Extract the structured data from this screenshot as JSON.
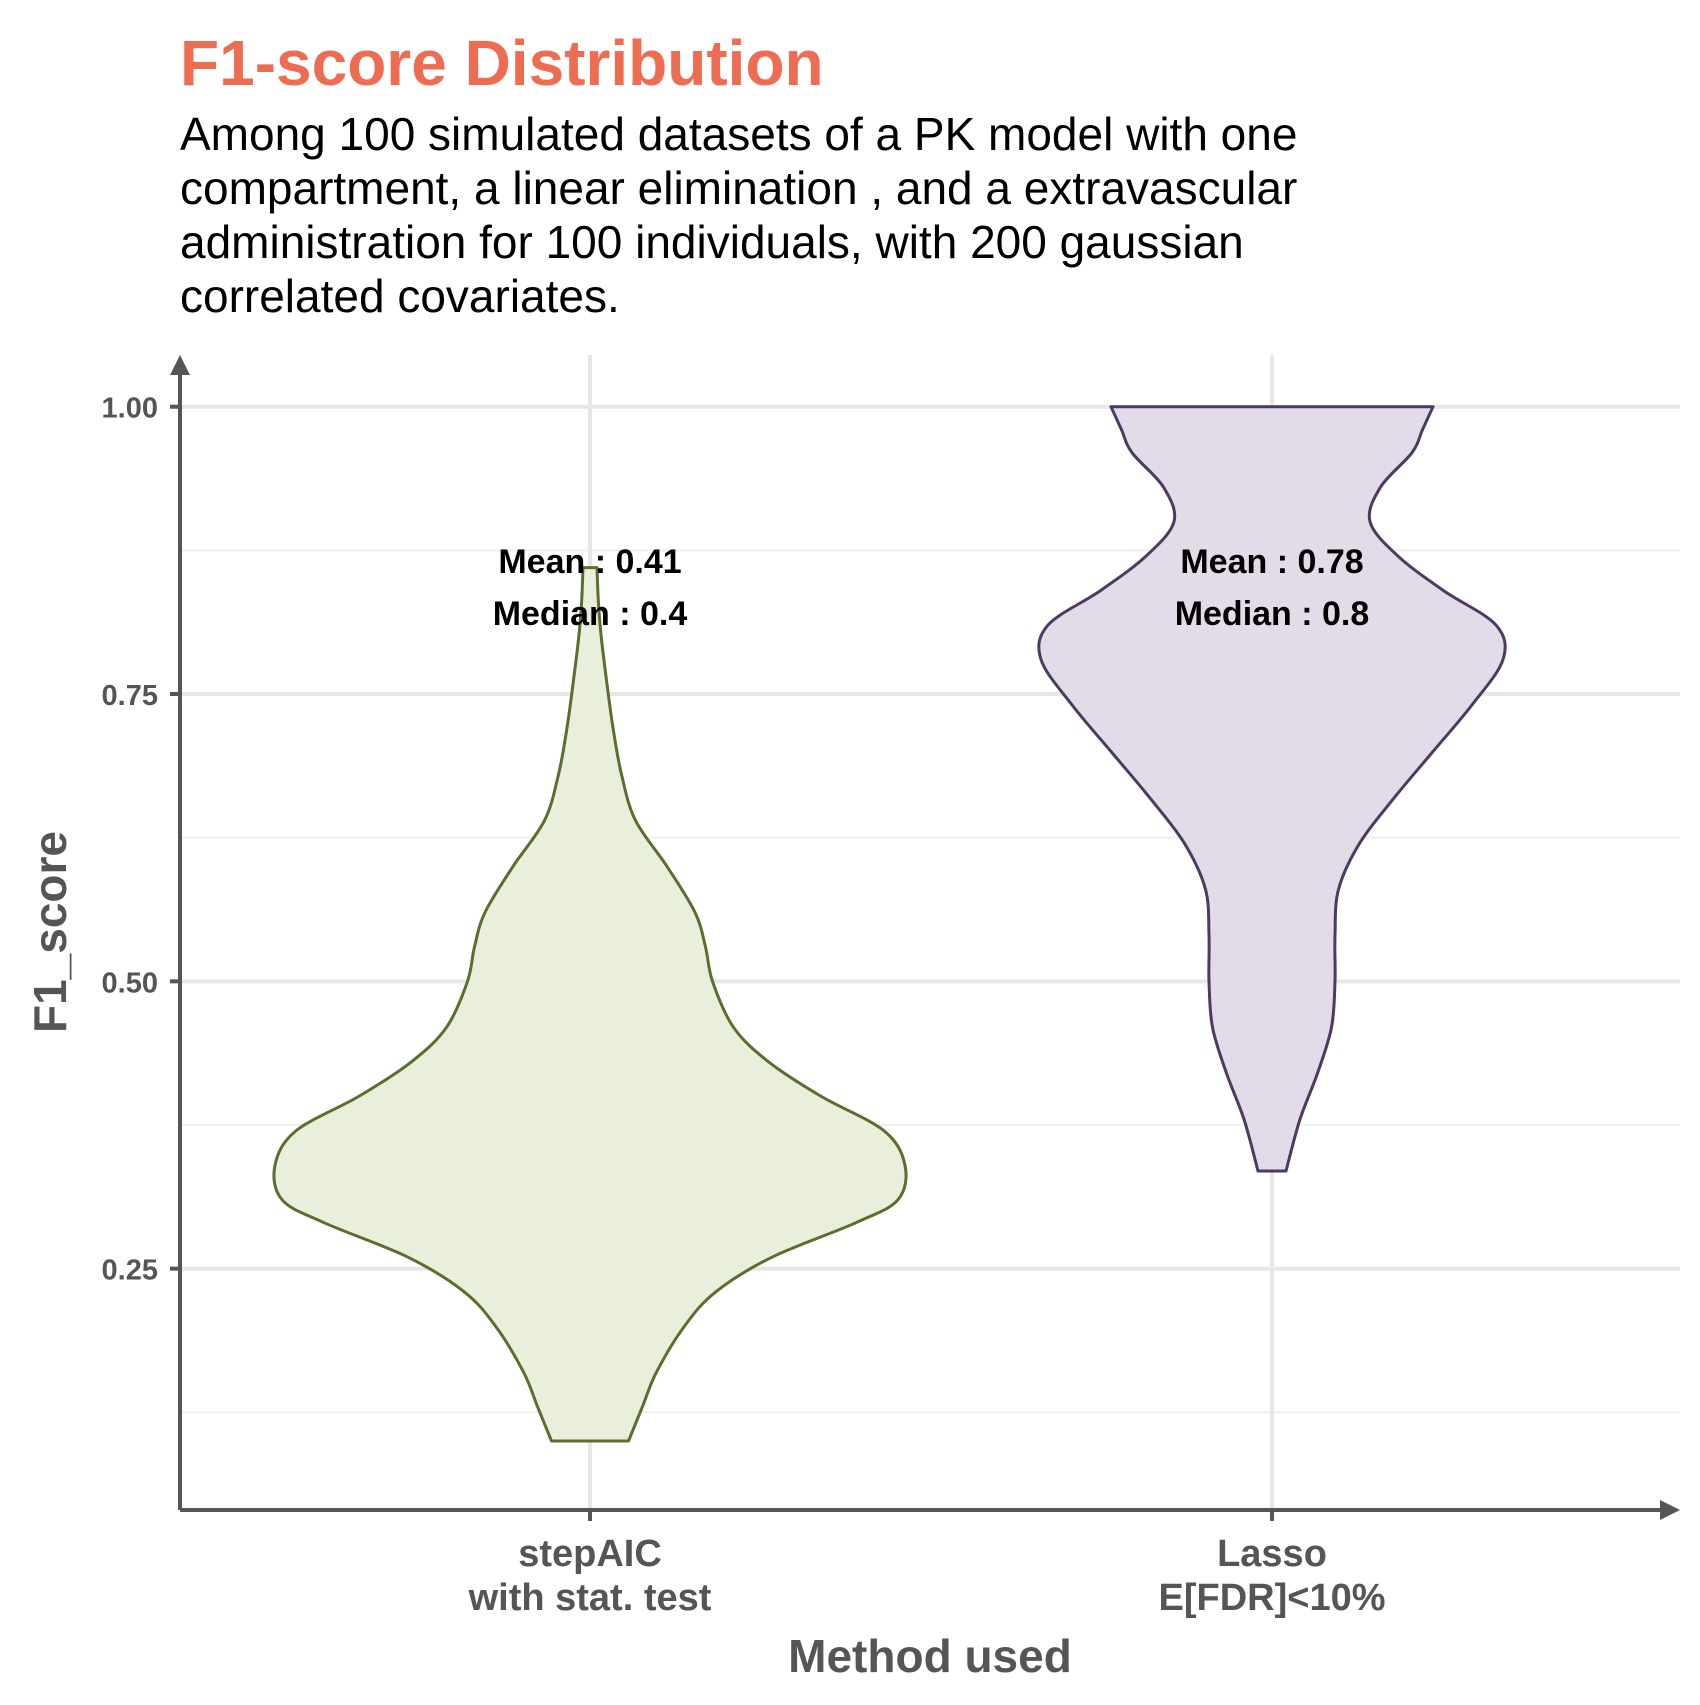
{
  "chart_data": {
    "type": "violin",
    "title": "F1-score Distribution",
    "subtitle_lines": [
      "Among 100 simulated datasets of a PK model with one",
      "compartment, a linear elimination , and a extravascular",
      "administration for 100 individuals, with 200 gaussian",
      "correlated covariates."
    ],
    "xlabel": "Method used",
    "ylabel": "F1_score",
    "ylim": [
      0.04,
      1.045
    ],
    "yticks": [
      0.25,
      0.5,
      0.75,
      1.0
    ],
    "ytick_labels": [
      "0.25",
      "0.50",
      "0.75",
      "1.00"
    ],
    "grid": true,
    "categories": [
      [
        "stepAIC",
        "with stat. test"
      ],
      [
        "Lasso",
        "E[FDR]<10%"
      ]
    ],
    "series": [
      {
        "range": [
          0.1,
          0.86
        ],
        "annotation": [
          "Mean : 0.41",
          "Median : 0.4"
        ],
        "fill": "#eaefdc",
        "stroke": "#5a6e2e",
        "profile": [
          [
            0.1,
            0.055
          ],
          [
            0.13,
            0.075
          ],
          [
            0.16,
            0.095
          ],
          [
            0.2,
            0.135
          ],
          [
            0.23,
            0.18
          ],
          [
            0.26,
            0.26
          ],
          [
            0.29,
            0.38
          ],
          [
            0.31,
            0.44
          ],
          [
            0.34,
            0.45
          ],
          [
            0.37,
            0.42
          ],
          [
            0.4,
            0.33
          ],
          [
            0.43,
            0.255
          ],
          [
            0.46,
            0.205
          ],
          [
            0.5,
            0.175
          ],
          [
            0.53,
            0.165
          ],
          [
            0.56,
            0.15
          ],
          [
            0.6,
            0.11
          ],
          [
            0.64,
            0.065
          ],
          [
            0.68,
            0.045
          ],
          [
            0.72,
            0.033
          ],
          [
            0.76,
            0.024
          ],
          [
            0.8,
            0.016
          ],
          [
            0.83,
            0.012
          ],
          [
            0.86,
            0.01
          ]
        ]
      },
      {
        "range": [
          0.335,
          1.0
        ],
        "annotation": [
          "Mean : 0.78",
          "Median : 0.8"
        ],
        "fill": "#e3dbe8",
        "stroke": "#4b3b5f",
        "profile": [
          [
            0.335,
            0.02
          ],
          [
            0.38,
            0.04
          ],
          [
            0.42,
            0.065
          ],
          [
            0.46,
            0.085
          ],
          [
            0.5,
            0.09
          ],
          [
            0.54,
            0.09
          ],
          [
            0.58,
            0.095
          ],
          [
            0.62,
            0.125
          ],
          [
            0.66,
            0.175
          ],
          [
            0.7,
            0.23
          ],
          [
            0.74,
            0.285
          ],
          [
            0.78,
            0.33
          ],
          [
            0.81,
            0.32
          ],
          [
            0.84,
            0.245
          ],
          [
            0.87,
            0.18
          ],
          [
            0.9,
            0.14
          ],
          [
            0.93,
            0.155
          ],
          [
            0.96,
            0.2
          ],
          [
            0.98,
            0.215
          ],
          [
            1.0,
            0.23
          ]
        ]
      }
    ]
  }
}
